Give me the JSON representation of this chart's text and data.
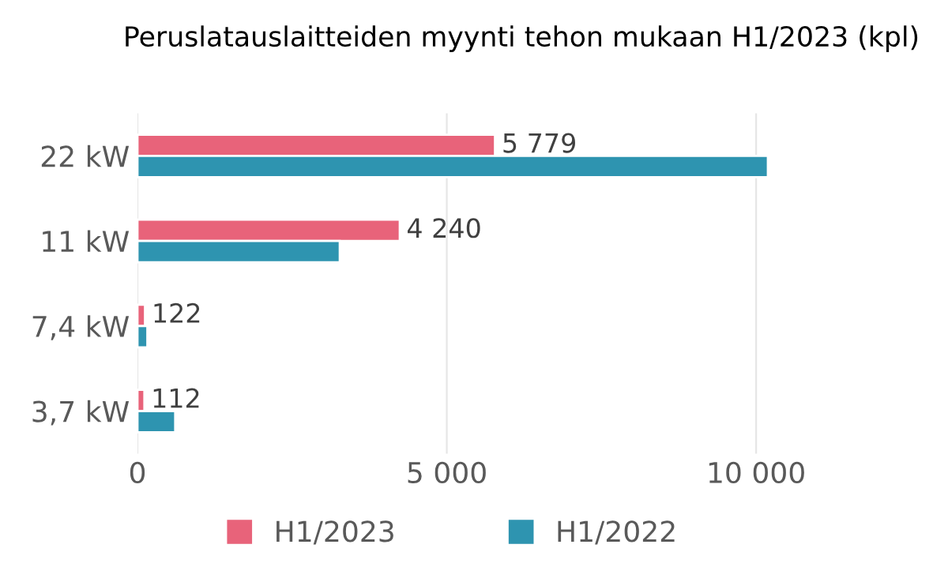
{
  "chart_data": {
    "type": "bar",
    "orientation": "horizontal",
    "title": "Peruslatauslaitteiden myynti tehon mukaan H1/2023 (kpl)",
    "categories": [
      "22 kW",
      "11 kW",
      "7,4 kW",
      "3,7 kW"
    ],
    "series": [
      {
        "name": "H1/2023",
        "color": "#e8637a",
        "values": [
          5779,
          4240,
          122,
          112
        ],
        "value_labels": [
          "5 779",
          "4 240",
          "122",
          "112"
        ]
      },
      {
        "name": "H1/2022",
        "color": "#2e94b0",
        "values": [
          10190,
          3270,
          160,
          610
        ]
      }
    ],
    "xlim": [
      0,
      10190
    ],
    "xticks": [
      0,
      {
        "value": 5000,
        "label": "5 000"
      },
      {
        "value": 10000,
        "label": "10 000"
      }
    ],
    "grid": "x",
    "legend": "bottom"
  }
}
